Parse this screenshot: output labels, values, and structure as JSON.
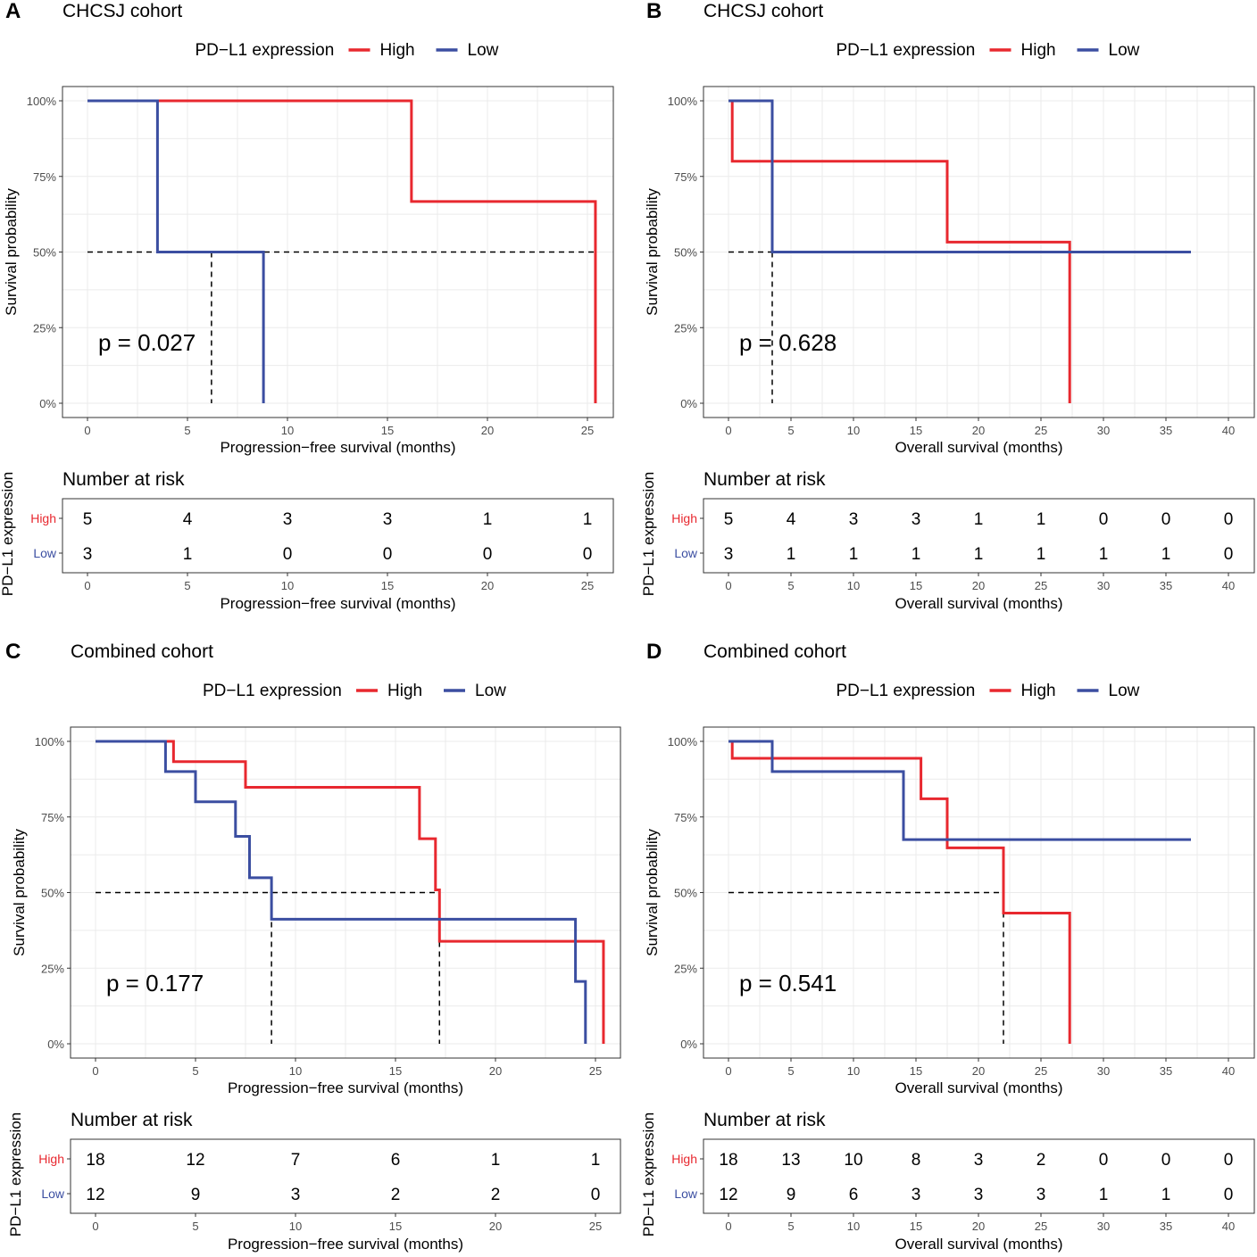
{
  "colors": {
    "high": "#e8282f",
    "low": "#3b4ea1",
    "grid": "#ebebeb",
    "frame": "#333333",
    "tick_text": "#4d4d4d",
    "dash": "#000000"
  },
  "chart_data": [
    {
      "id": "A",
      "panel_letter": "A",
      "title": "CHCSJ cohort",
      "type": "line",
      "legend_title": "PD−L1 expression",
      "legend_labels": [
        "High",
        "Low"
      ],
      "xlabel": "Progression−free survival (months)",
      "ylabel": "Survival probability",
      "xlim": [
        0,
        26.5
      ],
      "xticks": [
        0,
        5,
        10,
        15,
        20,
        25
      ],
      "ylim": [
        0,
        1
      ],
      "yticks": [
        0,
        0.25,
        0.5,
        0.75,
        1
      ],
      "ytick_labels": [
        "0%",
        "25%",
        "50%",
        "75%",
        "100%"
      ],
      "p_value": "p = 0.027",
      "series": [
        {
          "name": "High",
          "steps": [
            [
              0,
              1
            ],
            [
              16.2,
              0.667
            ],
            [
              25.4,
              0
            ]
          ]
        },
        {
          "name": "Low",
          "steps": [
            [
              0,
              1
            ],
            [
              3.5,
              0.5
            ],
            [
              8.8,
              0
            ]
          ]
        }
      ],
      "median_lines": [
        6.2,
        25.4
      ],
      "risk_title": "Number at risk",
      "risk_ylabel": "PD−L1 expression",
      "risk_times": [
        0,
        5,
        10,
        15,
        20,
        25
      ],
      "risk_table": [
        {
          "name": "High",
          "values": [
            5,
            4,
            3,
            3,
            1,
            1
          ]
        },
        {
          "name": "Low",
          "values": [
            3,
            1,
            0,
            0,
            0,
            0
          ]
        }
      ]
    },
    {
      "id": "B",
      "panel_letter": "B",
      "title": "CHCSJ cohort",
      "type": "line",
      "legend_title": "PD−L1 expression",
      "legend_labels": [
        "High",
        "Low"
      ],
      "xlabel": "Overall survival (months)",
      "ylabel": "Survival probability",
      "xlim": [
        0,
        41.5
      ],
      "xticks": [
        0,
        5,
        10,
        15,
        20,
        25,
        30,
        35,
        40
      ],
      "ylim": [
        0,
        1
      ],
      "yticks": [
        0,
        0.25,
        0.5,
        0.75,
        1
      ],
      "ytick_labels": [
        "0%",
        "25%",
        "50%",
        "75%",
        "100%"
      ],
      "p_value": "p = 0.628",
      "series": [
        {
          "name": "High",
          "steps": [
            [
              0,
              1
            ],
            [
              0.3,
              0.8
            ],
            [
              17.5,
              0.533
            ],
            [
              27.3,
              0
            ]
          ]
        },
        {
          "name": "Low",
          "steps": [
            [
              0,
              1
            ],
            [
              3.5,
              0.5
            ],
            [
              37,
              0.5
            ]
          ]
        }
      ],
      "median_lines": [
        3.5,
        27.3
      ],
      "risk_title": "Number at risk",
      "risk_ylabel": "PD−L1 expression",
      "risk_times": [
        0,
        5,
        10,
        15,
        20,
        25,
        30,
        35,
        40
      ],
      "risk_table": [
        {
          "name": "High",
          "values": [
            5,
            4,
            3,
            3,
            1,
            1,
            0,
            0,
            0
          ]
        },
        {
          "name": "Low",
          "values": [
            3,
            1,
            1,
            1,
            1,
            1,
            1,
            1,
            0
          ]
        }
      ]
    },
    {
      "id": "C",
      "panel_letter": "C",
      "title": "Combined cohort",
      "type": "line",
      "legend_title": "PD−L1 expression",
      "legend_labels": [
        "High",
        "Low"
      ],
      "xlabel": "Progression−free survival (months)",
      "ylabel": "Survival probability",
      "xlim": [
        0,
        26.5
      ],
      "xticks": [
        0,
        5,
        10,
        15,
        20,
        25
      ],
      "ylim": [
        0,
        1
      ],
      "yticks": [
        0,
        0.25,
        0.5,
        0.75,
        1
      ],
      "ytick_labels": [
        "0%",
        "25%",
        "50%",
        "75%",
        "100%"
      ],
      "p_value": "p = 0.177",
      "series": [
        {
          "name": "High",
          "steps": [
            [
              0,
              1
            ],
            [
              3.9,
              0.933
            ],
            [
              7.5,
              0.848
            ],
            [
              16.2,
              0.678
            ],
            [
              17.0,
              0.509
            ],
            [
              17.2,
              0.339
            ],
            [
              25.4,
              0
            ]
          ]
        },
        {
          "name": "Low",
          "steps": [
            [
              0,
              1
            ],
            [
              3.5,
              0.9
            ],
            [
              5.0,
              0.8
            ],
            [
              7.0,
              0.686
            ],
            [
              7.7,
              0.549
            ],
            [
              8.8,
              0.412
            ],
            [
              24.0,
              0.206
            ],
            [
              24.5,
              0
            ]
          ]
        }
      ],
      "median_lines": [
        8.8,
        17.2
      ],
      "risk_title": "Number at risk",
      "risk_ylabel": "PD−L1 expression",
      "risk_times": [
        0,
        5,
        10,
        15,
        20,
        25
      ],
      "risk_table": [
        {
          "name": "High",
          "values": [
            18,
            12,
            7,
            6,
            1,
            1
          ]
        },
        {
          "name": "Low",
          "values": [
            12,
            9,
            3,
            2,
            2,
            0
          ]
        }
      ]
    },
    {
      "id": "D",
      "panel_letter": "D",
      "title": "Combined cohort",
      "type": "line",
      "legend_title": "PD−L1 expression",
      "legend_labels": [
        "High",
        "Low"
      ],
      "xlabel": "Overall survival (months)",
      "ylabel": "Survival probability",
      "xlim": [
        0,
        41.5
      ],
      "xticks": [
        0,
        5,
        10,
        15,
        20,
        25,
        30,
        35,
        40
      ],
      "ylim": [
        0,
        1
      ],
      "yticks": [
        0,
        0.25,
        0.5,
        0.75,
        1
      ],
      "ytick_labels": [
        "0%",
        "25%",
        "50%",
        "75%",
        "100%"
      ],
      "p_value": "p = 0.541",
      "series": [
        {
          "name": "High",
          "steps": [
            [
              0,
              1
            ],
            [
              0.3,
              0.944
            ],
            [
              15.4,
              0.81
            ],
            [
              17.5,
              0.648
            ],
            [
              22.0,
              0.432
            ],
            [
              27.3,
              0
            ]
          ]
        },
        {
          "name": "Low",
          "steps": [
            [
              0,
              1
            ],
            [
              3.5,
              0.9
            ],
            [
              14.0,
              0.675
            ],
            [
              37,
              0.675
            ]
          ]
        }
      ],
      "median_lines": [
        22.0
      ],
      "risk_title": "Number at risk",
      "risk_ylabel": "PD−L1 expression",
      "risk_times": [
        0,
        5,
        10,
        15,
        20,
        25,
        30,
        35,
        40
      ],
      "risk_table": [
        {
          "name": "High",
          "values": [
            18,
            13,
            10,
            8,
            3,
            2,
            0,
            0,
            0
          ]
        },
        {
          "name": "Low",
          "values": [
            12,
            9,
            6,
            3,
            3,
            3,
            1,
            1,
            0
          ]
        }
      ]
    }
  ]
}
